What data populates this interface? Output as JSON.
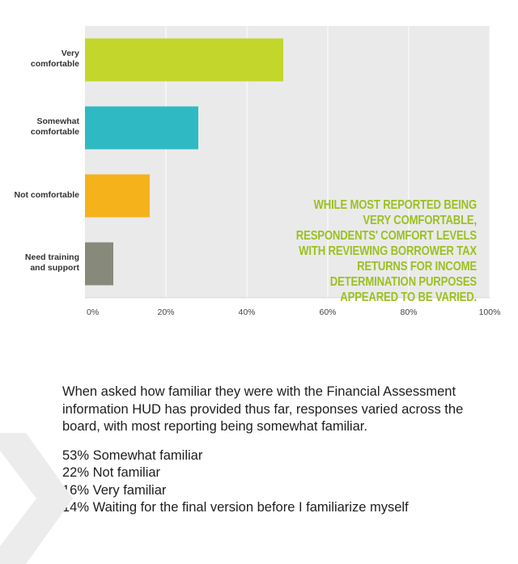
{
  "chart_data": {
    "type": "bar",
    "orientation": "horizontal",
    "categories": [
      "Very\ncomfortable",
      "Somewhat\ncomfortable",
      "Not comfortable",
      "Need training\nand support"
    ],
    "values": [
      49,
      28,
      16,
      7
    ],
    "colors": [
      "#c3d62b",
      "#2fbac3",
      "#f5b21b",
      "#878a7b"
    ],
    "xlim": [
      0,
      100
    ],
    "x_ticks": [
      "0%",
      "20%",
      "40%",
      "60%",
      "80%",
      "100%"
    ],
    "grid": true,
    "annotation": "While most reported being very comfortable, respondents' comfort levels with reviewing borrower tax returns for income determination purposes appeared to be varied."
  },
  "paragraph": "When asked how familiar they were with the Financial Assessment information HUD has provided thus far, responses varied across the board, with most reporting being somewhat familiar.",
  "stats": [
    "53% Somewhat familiar",
    "22% Not familiar",
    "16% Very familiar",
    "14% Waiting for the final version before I familiarize myself"
  ],
  "colors": {
    "plot_background": "#eaeaea",
    "callout": "#9cc021",
    "chevron": "#ececec"
  }
}
